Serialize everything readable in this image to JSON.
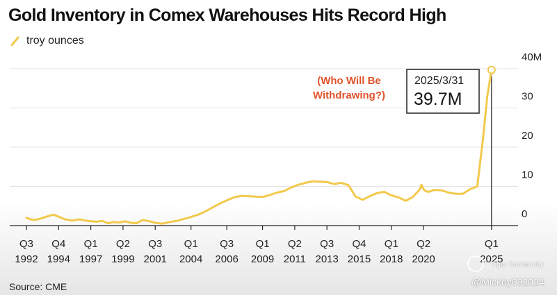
{
  "title": "Gold Inventory in Comex Warehouses Hits Record High",
  "legend_label": "troy ounces",
  "source": "Source: CME",
  "watermark": {
    "community": "Tiger Community",
    "user": "@Mickey082024"
  },
  "colors": {
    "line": "#f2c94c",
    "annotation": "#e0532b",
    "text": "#222222",
    "grid": "#e3e3e3"
  },
  "chart_data": {
    "type": "line",
    "title": "Gold Inventory in Comex Warehouses Hits Record High",
    "xlabel": "",
    "ylabel": "troy ounces",
    "xlim": [
      1992.5,
      2025.25
    ],
    "ylim": [
      0,
      40
    ],
    "y_unit": "millions of troy ounces",
    "yticks": [
      {
        "value": 0,
        "label": "0"
      },
      {
        "value": 10,
        "label": "10"
      },
      {
        "value": 20,
        "label": "20"
      },
      {
        "value": 30,
        "label": "30"
      },
      {
        "value": 40,
        "label": "40M"
      }
    ],
    "xticks": [
      {
        "value": 1992.5,
        "quarter": "Q3",
        "year": "1992"
      },
      {
        "value": 1994.75,
        "quarter": "Q4",
        "year": "1994"
      },
      {
        "value": 1997.0,
        "quarter": "Q1",
        "year": "1997"
      },
      {
        "value": 1999.25,
        "quarter": "Q2",
        "year": "1999"
      },
      {
        "value": 2001.5,
        "quarter": "Q3",
        "year": "2001"
      },
      {
        "value": 2004.0,
        "quarter": "Q1",
        "year": "2004"
      },
      {
        "value": 2006.5,
        "quarter": "Q3",
        "year": "2006"
      },
      {
        "value": 2009.0,
        "quarter": "Q1",
        "year": "2009"
      },
      {
        "value": 2011.25,
        "quarter": "Q2",
        "year": "2011"
      },
      {
        "value": 2013.5,
        "quarter": "Q3",
        "year": "2013"
      },
      {
        "value": 2015.75,
        "quarter": "Q4",
        "year": "2015"
      },
      {
        "value": 2018.0,
        "quarter": "Q1",
        "year": "2018"
      },
      {
        "value": 2020.25,
        "quarter": "Q2",
        "year": "2020"
      },
      {
        "value": 2025.0,
        "quarter": "Q1",
        "year": "2025"
      }
    ],
    "series": [
      {
        "name": "troy ounces",
        "x": [
          1992.5,
          1992.8,
          1993.1,
          1993.5,
          1994.0,
          1994.4,
          1994.8,
          1995.2,
          1995.7,
          1996.2,
          1996.6,
          1997.0,
          1997.4,
          1997.8,
          1998.2,
          1998.6,
          1999.0,
          1999.4,
          1999.8,
          2000.2,
          2000.6,
          2001.0,
          2001.5,
          2002.0,
          2002.5,
          2003.0,
          2003.5,
          2004.0,
          2004.5,
          2005.0,
          2005.5,
          2006.0,
          2006.5,
          2007.0,
          2007.5,
          2008.0,
          2008.5,
          2009.0,
          2009.5,
          2010.0,
          2010.5,
          2011.0,
          2011.5,
          2012.0,
          2012.5,
          2013.0,
          2013.5,
          2014.0,
          2014.5,
          2015.0,
          2015.5,
          2016.0,
          2016.5,
          2017.0,
          2017.5,
          2018.0,
          2018.5,
          2019.0,
          2019.5,
          2020.0,
          2020.1,
          2020.25,
          2020.4,
          2020.6,
          2021.0,
          2021.5,
          2022.0,
          2022.5,
          2023.0,
          2023.5,
          2024.0,
          2024.4,
          2024.7,
          2025.0
        ],
        "values": [
          2.0,
          1.6,
          1.4,
          1.8,
          2.4,
          2.8,
          2.2,
          1.6,
          1.3,
          1.6,
          1.3,
          1.1,
          1.0,
          1.2,
          0.6,
          0.9,
          0.8,
          1.1,
          0.7,
          0.6,
          1.4,
          1.2,
          0.7,
          0.5,
          0.9,
          1.2,
          1.7,
          2.2,
          2.8,
          3.6,
          4.6,
          5.6,
          6.4,
          7.2,
          7.6,
          7.5,
          7.4,
          7.3,
          7.8,
          8.4,
          8.8,
          9.7,
          10.4,
          10.9,
          11.3,
          11.2,
          11.1,
          10.6,
          10.9,
          10.3,
          7.4,
          6.6,
          7.5,
          8.3,
          8.6,
          7.7,
          7.2,
          6.3,
          7.3,
          9.3,
          10.4,
          9.3,
          8.8,
          8.6,
          9.1,
          9.0,
          8.4,
          8.1,
          8.1,
          9.3,
          10.0,
          22.0,
          33.0,
          39.7
        ],
        "color": "#f2c94c"
      }
    ],
    "annotations": [
      {
        "text": "(Who Will Be Withdrawing?)",
        "lines": [
          "(Who Will Be",
          "Withdrawing?)"
        ]
      },
      {
        "date": "2025/3/31",
        "value_label": "39.7M",
        "x": 2025.0,
        "y": 39.7
      }
    ]
  }
}
